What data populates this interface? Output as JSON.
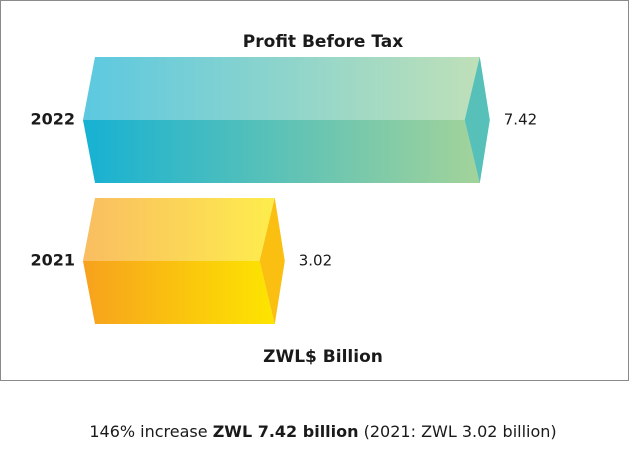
{
  "chart_data": {
    "type": "bar",
    "orientation": "horizontal",
    "title": "Profit Before Tax",
    "categories": [
      "2022",
      "2021"
    ],
    "values": [
      7.42,
      3.02
    ],
    "colors": [
      [
        "#16b1d3",
        "#a3d39a"
      ],
      [
        "#f7a11e",
        "#fde500"
      ]
    ],
    "xlabel": "ZWL$ Billion"
  },
  "caption": {
    "prefix": "146% increase",
    "highlight": "ZWL 7.42 billion",
    "suffix": "(2021: ZWL 3.02 billion)"
  }
}
